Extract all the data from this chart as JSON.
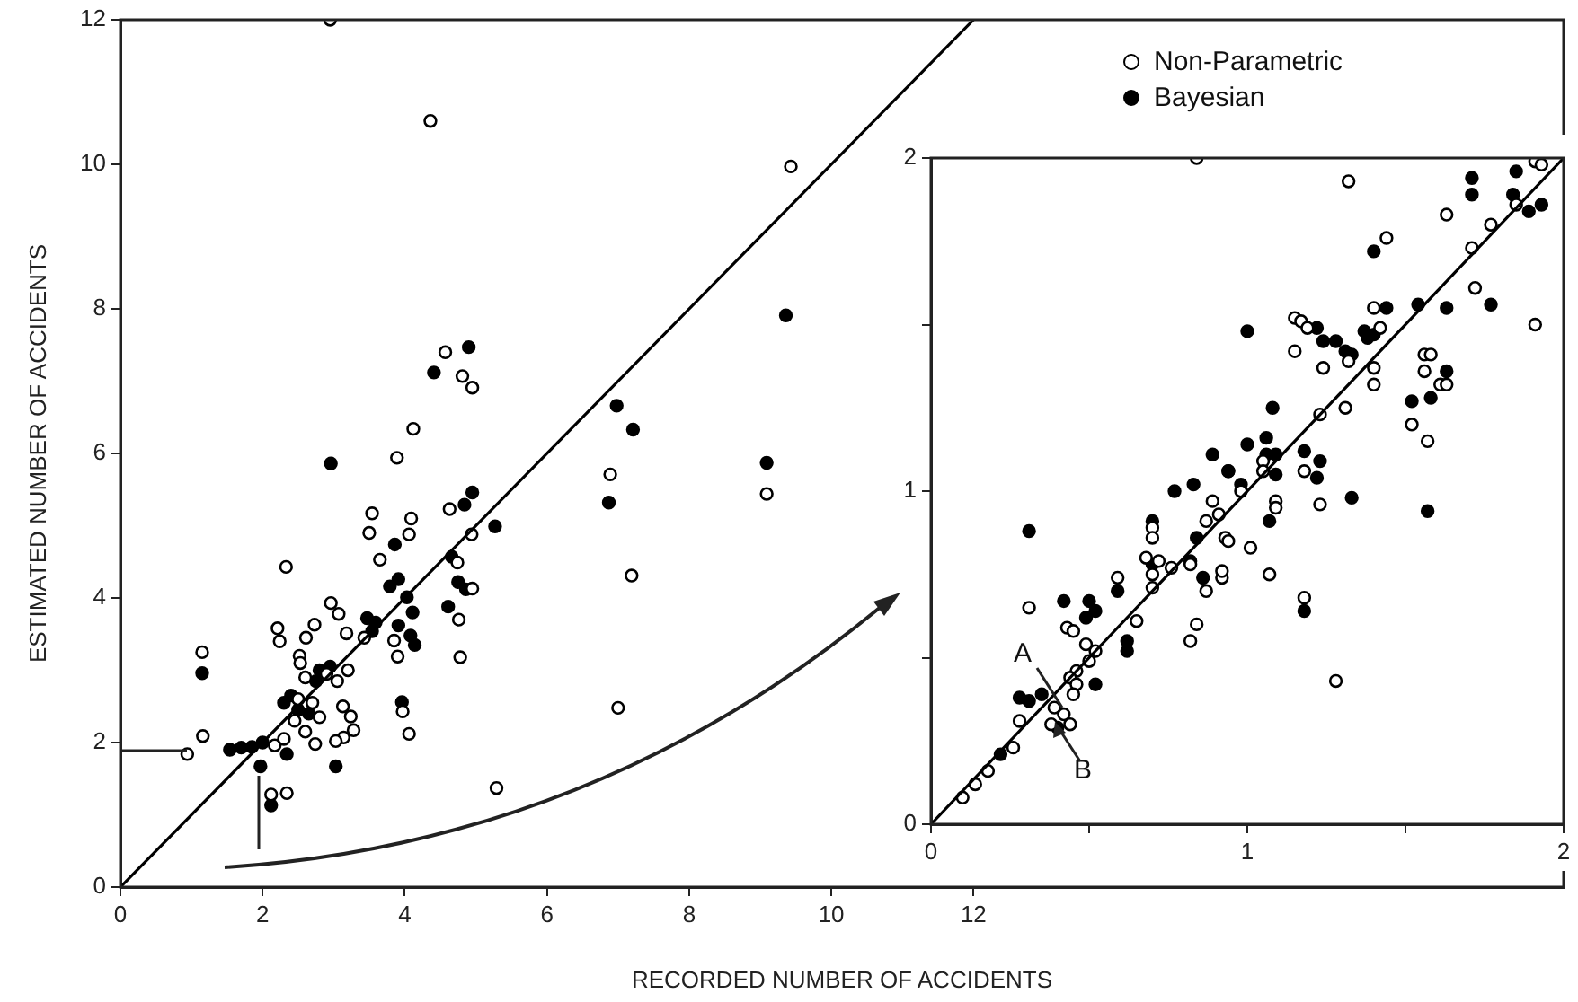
{
  "chart_data": [
    {
      "type": "scatter",
      "xlabel": "RECORDED NUMBER OF ACCIDENTS",
      "ylabel": "ESTIMATED NUMBER OF ACCIDENTS",
      "xlim": [
        0,
        20.3
      ],
      "ylim": [
        0,
        12
      ],
      "xticks": [
        0,
        2,
        4,
        6,
        8,
        10,
        12
      ],
      "yticks": [
        0,
        2,
        4,
        6,
        8,
        10,
        12
      ],
      "grid": false,
      "legend": "top right",
      "marker": "circle",
      "series": [
        {
          "name": "Non-Parametric",
          "color": "#000000",
          "x": [
            2.95,
            4.36,
            4.57,
            4.81,
            4.95,
            4.12,
            3.89,
            6.89,
            4.63,
            3.54,
            4.09,
            3.5,
            4.06,
            4.94,
            9.43,
            9.09,
            7.19,
            7.0,
            2.33,
            5.29,
            1.15,
            1.16,
            0.94,
            2.12,
            2.34,
            4.06,
            3.97,
            3.65,
            4.74,
            4.95,
            4.76,
            4.78,
            3.85,
            3.9,
            3.43,
            3.18,
            2.96,
            3.07,
            2.73,
            2.61,
            2.21,
            2.24,
            2.52,
            2.53,
            3.13,
            3.24,
            3.28,
            3.14,
            3.03,
            2.74,
            2.17,
            2.6,
            2.9,
            3.05,
            2.5,
            2.7,
            2.45,
            2.8,
            2.6,
            2.3,
            3.2
          ],
          "values": [
            12,
            10.6,
            7.4,
            7.07,
            6.91,
            6.34,
            5.94,
            5.71,
            5.23,
            5.17,
            5.1,
            4.9,
            4.88,
            4.88,
            9.97,
            5.44,
            4.31,
            2.48,
            4.43,
            1.37,
            3.25,
            2.09,
            1.84,
            1.28,
            1.3,
            2.12,
            2.43,
            4.53,
            4.49,
            4.13,
            3.7,
            3.18,
            3.41,
            3.19,
            3.45,
            3.51,
            3.93,
            3.78,
            3.63,
            3.45,
            3.58,
            3.4,
            3.2,
            3.1,
            2.5,
            2.36,
            2.17,
            2.07,
            2.02,
            1.98,
            1.96,
            2.9,
            2.95,
            2.85,
            2.6,
            2.55,
            2.3,
            2.35,
            2.15,
            2.05,
            3.0
          ]
        },
        {
          "name": "Bayesian",
          "color": "#000000",
          "x": [
            4.9,
            4.41,
            2.96,
            6.98,
            7.21,
            6.87,
            4.95,
            4.84,
            5.27,
            9.36,
            9.09,
            1.15,
            1.54,
            1.7,
            1.85,
            1.97,
            2.12,
            3.03,
            3.96,
            3.86,
            4.66,
            3.79,
            3.91,
            4.03,
            4.75,
            4.86,
            4.61,
            4.11,
            3.91,
            3.47,
            3.59,
            3.54,
            4.08,
            4.14,
            2.34,
            2.8,
            2.95,
            null,
            2.75,
            2.4,
            2.5,
            2.65,
            2.3,
            null,
            2.0
          ],
          "values": [
            7.47,
            7.12,
            5.86,
            6.66,
            6.33,
            5.32,
            5.46,
            5.29,
            4.99,
            7.91,
            5.87,
            2.96,
            1.9,
            1.93,
            1.94,
            1.67,
            1.13,
            1.67,
            2.56,
            4.74,
            4.57,
            4.16,
            4.26,
            4.01,
            4.22,
            4.12,
            3.88,
            3.8,
            3.62,
            3.72,
            3.66,
            3.54,
            3.48,
            3.35,
            1.84,
            3.0,
            3.05,
            null,
            2.85,
            2.65,
            2.45,
            2.4,
            2.55,
            null,
            2.0
          ]
        },
        {
          "type": "line",
          "color": "#000000",
          "marker": "none",
          "x": [
            0,
            12
          ],
          "values": [
            0,
            12
          ]
        }
      ]
    },
    {
      "type": "scatter",
      "xlim": [
        0,
        2
      ],
      "ylim": [
        0,
        2
      ],
      "xticks": [
        0,
        {
          "value": 0.5,
          "label": null
        },
        1,
        {
          "value": 1.5,
          "label": null
        },
        2
      ],
      "yticks": [
        0,
        {
          "value": 0.5,
          "label": null
        },
        1,
        {
          "value": 1.5,
          "label": null
        },
        2
      ],
      "grid": false,
      "marker": "circle",
      "annotations": [
        "A",
        "B"
      ],
      "series": [
        {
          "color": "#000000",
          "x": [
            0.84,
            0.31,
            0.43,
            0.45,
            0.49,
            0.52,
            0.5,
            0.46,
            0.44,
            0.46,
            0.45,
            0.28,
            0.26,
            0.18,
            0.14,
            0.1,
            0.39,
            0.42,
            0.44,
            0.38,
            0.59,
            0.65,
            0.7,
            0.7,
            0.68,
            0.72,
            0.7,
            0.7,
            0.76,
            0.89,
            0.91,
            0.87,
            0.93,
            0.82,
            0.87,
            0.92,
            0.84,
            0.82,
            1.32,
            1.44,
            1.15,
            1.17,
            1.19,
            1.15,
            1.24,
            1.32,
            1.4,
            1.42,
            1.4,
            1.4,
            1.72,
            1.63,
            1.71,
            1.77,
            1.85,
            1.91,
            1.93,
            1.91,
            1.56,
            1.58,
            1.56,
            1.61,
            1.63,
            1.52,
            1.57,
            1.23,
            1.31,
            1.05,
            1.05,
            1.18,
            1.09,
            1.09,
            1.23,
            0.98,
            0.94,
            1.01,
            0.92,
            1.07,
            1.18,
            1.28
          ],
          "values": [
            2.0,
            0.65,
            0.59,
            0.58,
            0.54,
            0.52,
            0.49,
            0.46,
            0.44,
            0.42,
            0.39,
            0.31,
            0.23,
            0.16,
            0.12,
            0.08,
            0.35,
            0.33,
            0.3,
            0.3,
            0.74,
            0.61,
            0.89,
            0.86,
            0.8,
            0.79,
            0.75,
            0.71,
            0.77,
            0.97,
            0.93,
            0.91,
            0.86,
            0.78,
            0.7,
            0.74,
            0.6,
            0.55,
            1.93,
            1.76,
            1.52,
            1.51,
            1.49,
            1.42,
            1.37,
            1.39,
            1.55,
            1.49,
            1.37,
            1.32,
            1.61,
            1.83,
            1.73,
            1.8,
            1.86,
            1.99,
            1.98,
            1.5,
            1.41,
            1.41,
            1.36,
            1.32,
            1.32,
            1.2,
            1.15,
            1.23,
            1.25,
            1.09,
            1.06,
            1.06,
            0.97,
            0.95,
            0.96,
            1.0,
            0.85,
            0.83,
            0.76,
            0.75,
            0.68,
            0.43
          ]
        },
        {
          "color": "#000000",
          "x": [
            0.31,
            0.42,
            0.5,
            0.52,
            0.49,
            0.52,
            0.28,
            0.31,
            0.22,
            0.35,
            0.4,
            0.59,
            0.62,
            0.62,
            0.7,
            0.7,
            0.77,
            0.83,
            0.89,
            0.94,
            0.84,
            0.82,
            0.86,
            1.4,
            1.0,
            1.22,
            1.24,
            1.28,
            1.31,
            1.33,
            1.37,
            1.38,
            1.4,
            1.44,
            1.54,
            1.63,
            1.77,
            1.71,
            1.71,
            1.85,
            1.84,
            1.89,
            1.93,
            1.63,
            1.58,
            1.52,
            1.57,
            1.08,
            1.0,
            1.06,
            1.06,
            1.09,
            1.09,
            1.18,
            1.23,
            1.22,
            1.07,
            1.33,
            0.94,
            0.98,
            1.18
          ],
          "values": [
            0.88,
            0.67,
            0.67,
            0.64,
            0.62,
            0.42,
            0.38,
            0.37,
            0.21,
            0.39,
            0.29,
            0.7,
            0.55,
            0.52,
            0.91,
            0.78,
            1.0,
            1.02,
            1.11,
            1.06,
            0.86,
            0.79,
            0.74,
            1.72,
            1.48,
            1.49,
            1.45,
            1.45,
            1.42,
            1.41,
            1.48,
            1.46,
            1.47,
            1.55,
            1.56,
            1.55,
            1.56,
            1.94,
            1.89,
            1.96,
            1.89,
            1.84,
            1.86,
            1.36,
            1.28,
            1.27,
            0.94,
            1.25,
            1.14,
            1.16,
            1.11,
            1.11,
            1.05,
            1.12,
            1.09,
            1.04,
            0.91,
            0.98,
            1.06,
            1.02,
            0.64
          ]
        },
        {
          "type": "line",
          "color": "#000000",
          "marker": "none",
          "x": [
            0,
            2
          ],
          "values": [
            0,
            2
          ]
        }
      ]
    }
  ]
}
